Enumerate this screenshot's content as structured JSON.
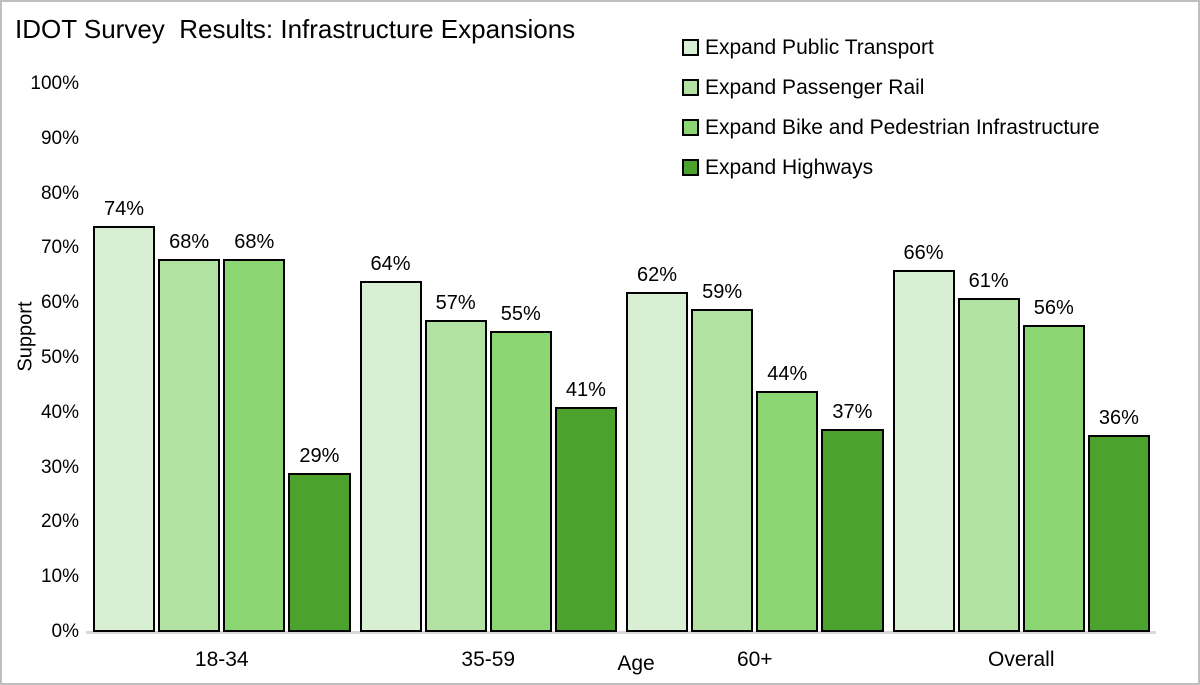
{
  "frame": {
    "background": "#ffffff",
    "border_color": "#bfbfbf"
  },
  "chart_data": {
    "type": "bar",
    "title": "IDOT Survey  Results: Infrastructure Expansions",
    "xlabel": "Age",
    "ylabel": "Support",
    "ylim": [
      0,
      100
    ],
    "ytick_step": 10,
    "ytick_suffix": "%",
    "value_suffix": "%",
    "grid": false,
    "legend_position": "top-right",
    "categories": [
      "18-34",
      "35-59",
      "60+",
      "Overall"
    ],
    "series": [
      {
        "name": "Expand Public Transport",
        "color": "#d9efd3",
        "values": [
          74,
          64,
          62,
          66
        ]
      },
      {
        "name": "Expand Passenger Rail",
        "color": "#b1e2a1",
        "values": [
          68,
          57,
          59,
          61
        ]
      },
      {
        "name": "Expand Bike and Pedestrian Infrastructure",
        "color": "#8bd572",
        "values": [
          68,
          55,
          44,
          56
        ]
      },
      {
        "name": "Expand Highways",
        "color": "#4ba32d",
        "values": [
          29,
          41,
          37,
          36
        ]
      }
    ],
    "bar_border_color": "#000000",
    "baseline_color": "#d9d9d9"
  }
}
